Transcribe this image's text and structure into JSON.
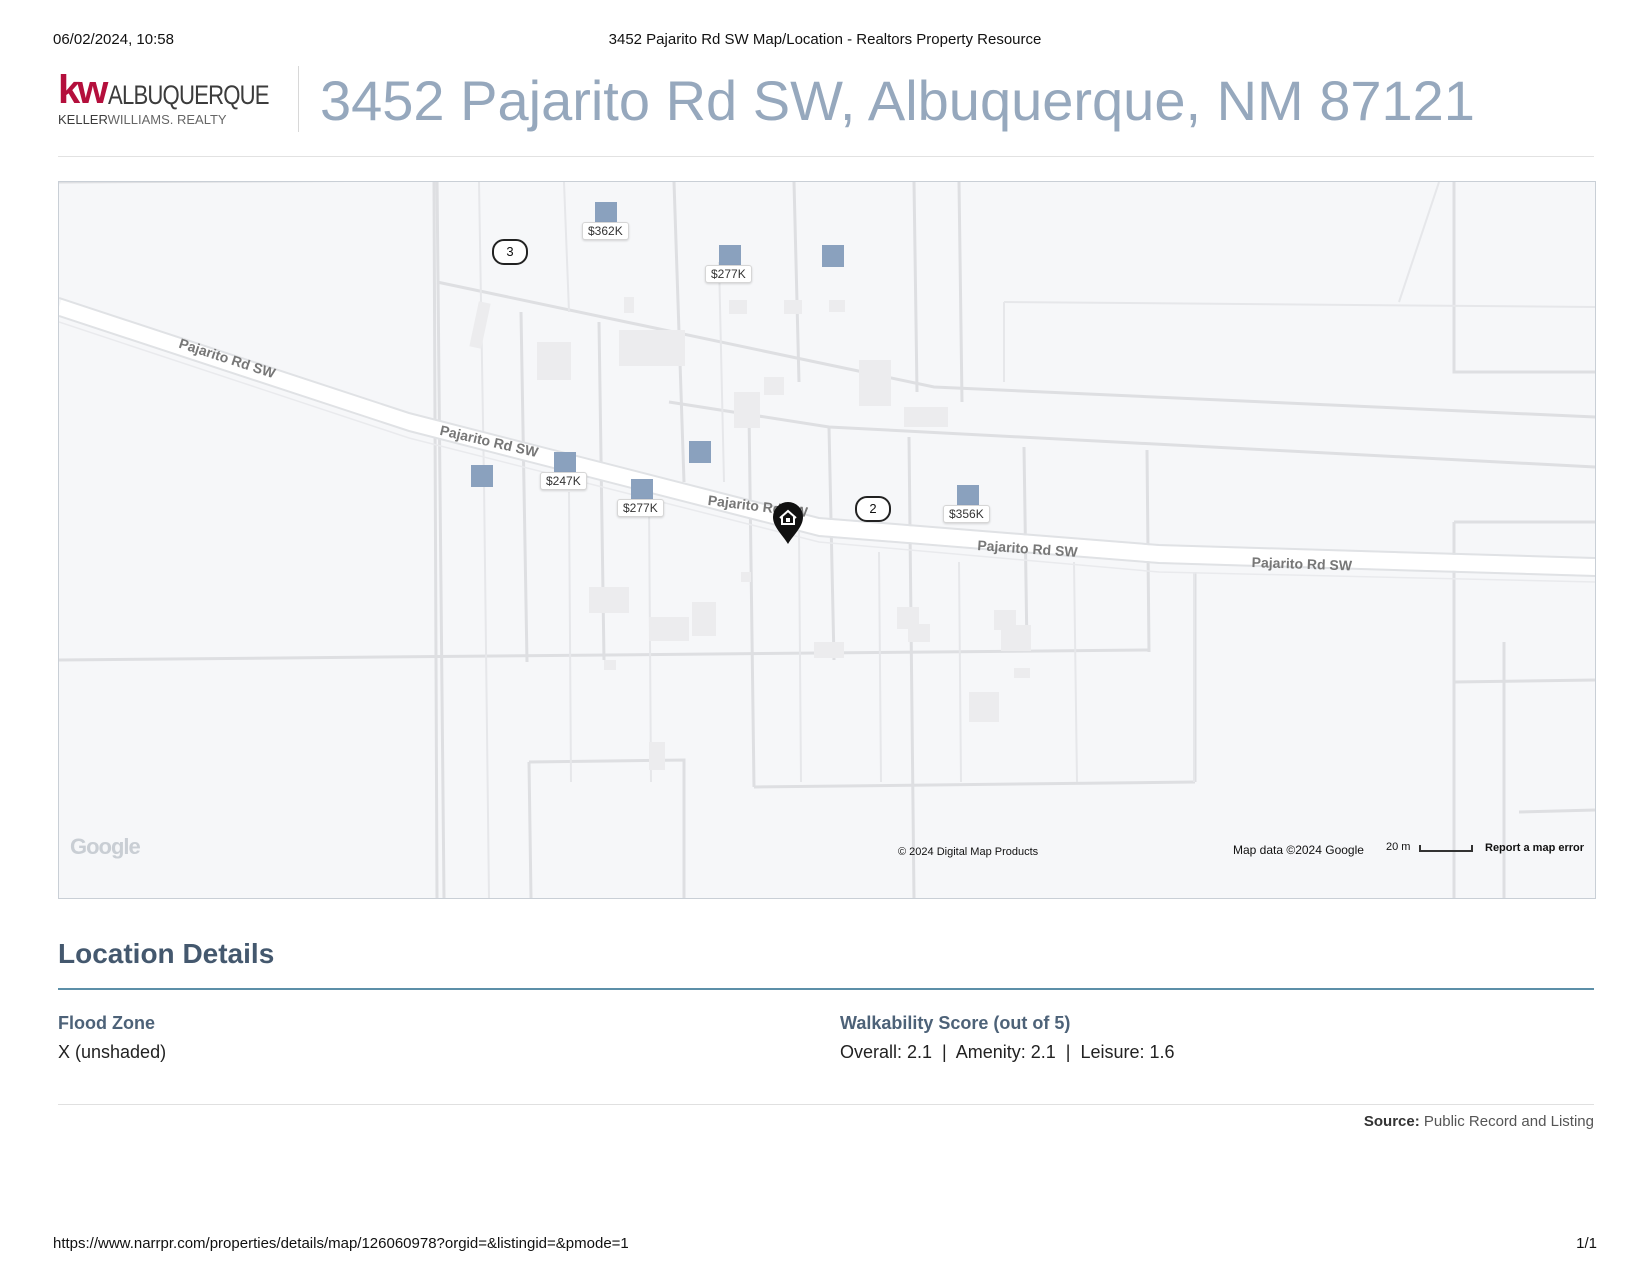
{
  "print_header": {
    "datetime": "06/02/2024, 10:58",
    "title": "3452 Pajarito Rd SW Map/Location - Realtors Property Resource"
  },
  "print_footer": {
    "url": "https://www.narrpr.com/properties/details/map/126060978?orgid=&listingid=&pmode=1",
    "page": "1/1"
  },
  "brand": {
    "kw": "kw",
    "city": "ALBUQUERQUE",
    "sub_bold": "KELLER",
    "sub_thin": "WILLIAMS. REALTY",
    "accent": "#b40f3c"
  },
  "property": {
    "address": "3452 Pajarito Rd SW, Albuquerque, NM 87121"
  },
  "map": {
    "road_name": "Pajarito Rd SW",
    "prices": [
      "$362K",
      "$277K",
      "$247K",
      "$277K",
      "$356K"
    ],
    "clusters": [
      "3",
      "2"
    ],
    "subject_marker_icon": "home-pin-icon",
    "google_logo": "Google",
    "copyright": "© 2024 Digital Map Products",
    "map_data": "Map data ©2024 Google",
    "scale": "20 m",
    "report_error": "Report a map error",
    "marker_color": "#8aa1be"
  },
  "location_details": {
    "title": "Location Details",
    "flood_zone_label": "Flood Zone",
    "flood_zone_value": "X (unshaded)",
    "walkability_label": "Walkability Score (out of 5)",
    "walkability_value": "Overall: 2.1  |  Amenity: 2.1  |  Leisure: 1.6"
  },
  "source": {
    "label": "Source:",
    "value": "Public Record and Listing"
  }
}
